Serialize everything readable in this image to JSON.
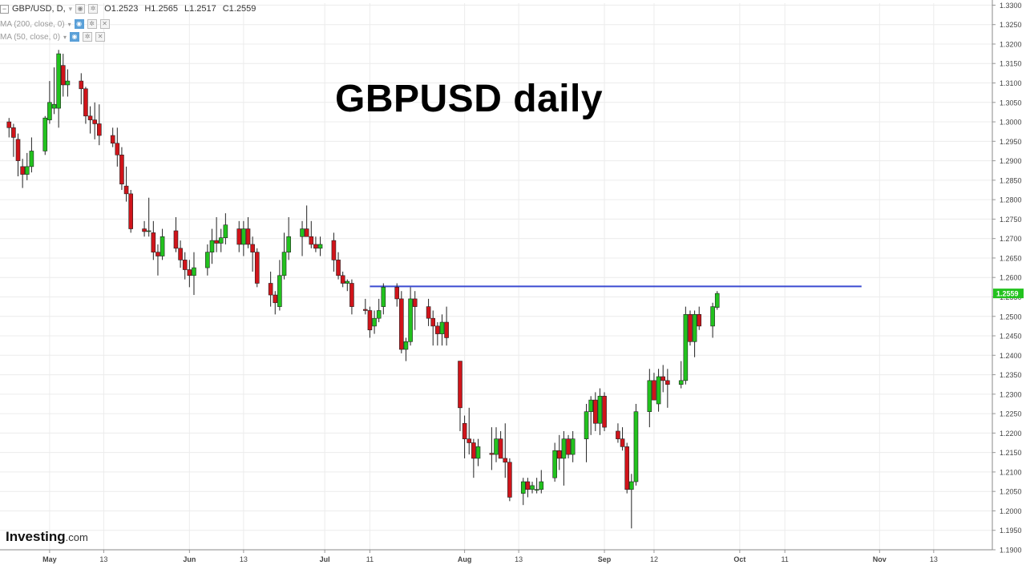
{
  "header": {
    "symbol": "GBP/USD, D,",
    "open": "O1.2523",
    "high": "H1.2565",
    "low": "L1.2517",
    "close": "C1.2559",
    "ma200": "MA (200, close, 0)",
    "ma50": "MA (50, close, 0)"
  },
  "brand": {
    "name": "Investing",
    "suffix": ".com"
  },
  "colors": {
    "up": "#22c21e",
    "down": "#d0141a",
    "resistance": "#3b4bd1",
    "price_tag": "#22c21e"
  },
  "chart_data": {
    "type": "candlestick",
    "title": "GBPUSD daily",
    "ylim": [
      1.19,
      1.3305
    ],
    "y_ticks": [
      "1.3300",
      "1.3250",
      "1.3200",
      "1.3150",
      "1.3100",
      "1.3050",
      "1.3000",
      "1.2950",
      "1.2900",
      "1.2850",
      "1.2800",
      "1.2750",
      "1.2700",
      "1.2650",
      "1.2600",
      "1.2550",
      "1.2500",
      "1.2450",
      "1.2400",
      "1.2350",
      "1.2300",
      "1.2250",
      "1.2200",
      "1.2150",
      "1.2100",
      "1.2050",
      "1.2000",
      "1.1950",
      "1.1900"
    ],
    "x_ticks": [
      {
        "label": "May",
        "day": 0
      },
      {
        "label": "13",
        "day": 12
      },
      {
        "label": "Jun",
        "day": 31
      },
      {
        "label": "13",
        "day": 43
      },
      {
        "label": "Jul",
        "day": 61
      },
      {
        "label": "11",
        "day": 71
      },
      {
        "label": "Aug",
        "day": 92
      },
      {
        "label": "13",
        "day": 104
      },
      {
        "label": "Sep",
        "day": 123
      },
      {
        "label": "12",
        "day": 134
      },
      {
        "label": "Oct",
        "day": 153
      },
      {
        "label": "11",
        "day": 163
      },
      {
        "label": "Nov",
        "day": 184
      },
      {
        "label": "13",
        "day": 196
      }
    ],
    "x_range_days": [
      -11,
      209
    ],
    "last_price": "1.2559",
    "resistance": {
      "level": 1.2577,
      "from_day": 71,
      "to_day": 180
    },
    "candles": [
      {
        "d": -9,
        "o": 1.3,
        "h": 1.301,
        "l": 1.296,
        "c": 1.2985
      },
      {
        "d": -8,
        "o": 1.2985,
        "h": 1.2995,
        "l": 1.291,
        "c": 1.296
      },
      {
        "d": -7,
        "o": 1.2955,
        "h": 1.297,
        "l": 1.286,
        "c": 1.29
      },
      {
        "d": -6,
        "o": 1.2885,
        "h": 1.2905,
        "l": 1.283,
        "c": 1.2865
      },
      {
        "d": -5,
        "o": 1.2865,
        "h": 1.292,
        "l": 1.285,
        "c": 1.2885
      },
      {
        "d": -4,
        "o": 1.2885,
        "h": 1.296,
        "l": 1.287,
        "c": 1.2925
      },
      {
        "d": -1,
        "o": 1.2925,
        "h": 1.3015,
        "l": 1.2915,
        "c": 1.301
      },
      {
        "d": 0,
        "o": 1.3005,
        "h": 1.3105,
        "l": 1.2995,
        "c": 1.305
      },
      {
        "d": 1,
        "o": 1.3035,
        "h": 1.314,
        "l": 1.302,
        "c": 1.3045
      },
      {
        "d": 2,
        "o": 1.3035,
        "h": 1.3185,
        "l": 1.2985,
        "c": 1.3175
      },
      {
        "d": 3,
        "o": 1.3145,
        "h": 1.3175,
        "l": 1.3065,
        "c": 1.3095
      },
      {
        "d": 4,
        "o": 1.3095,
        "h": 1.3135,
        "l": 1.3065,
        "c": 1.3105
      },
      {
        "d": 7,
        "o": 1.3105,
        "h": 1.3125,
        "l": 1.3045,
        "c": 1.3085
      },
      {
        "d": 8,
        "o": 1.3085,
        "h": 1.309,
        "l": 1.2995,
        "c": 1.3015
      },
      {
        "d": 9,
        "o": 1.3015,
        "h": 1.304,
        "l": 1.297,
        "c": 1.3005
      },
      {
        "d": 10,
        "o": 1.3005,
        "h": 1.305,
        "l": 1.2955,
        "c": 1.2995
      },
      {
        "d": 11,
        "o": 1.2995,
        "h": 1.3045,
        "l": 1.294,
        "c": 1.2965
      },
      {
        "d": 14,
        "o": 1.2965,
        "h": 1.2985,
        "l": 1.2935,
        "c": 1.2945
      },
      {
        "d": 15,
        "o": 1.2945,
        "h": 1.2985,
        "l": 1.2885,
        "c": 1.2915
      },
      {
        "d": 16,
        "o": 1.2915,
        "h": 1.2935,
        "l": 1.2825,
        "c": 1.284
      },
      {
        "d": 17,
        "o": 1.2835,
        "h": 1.2885,
        "l": 1.2795,
        "c": 1.2815
      },
      {
        "d": 18,
        "o": 1.2815,
        "h": 1.2825,
        "l": 1.2715,
        "c": 1.2725
      },
      {
        "d": 21,
        "o": 1.2725,
        "h": 1.2745,
        "l": 1.2705,
        "c": 1.2718
      },
      {
        "d": 22,
        "o": 1.2718,
        "h": 1.2805,
        "l": 1.2705,
        "c": 1.272
      },
      {
        "d": 23,
        "o": 1.2715,
        "h": 1.2745,
        "l": 1.2645,
        "c": 1.2665
      },
      {
        "d": 24,
        "o": 1.2665,
        "h": 1.2685,
        "l": 1.2605,
        "c": 1.2655
      },
      {
        "d": 25,
        "o": 1.2655,
        "h": 1.2725,
        "l": 1.2645,
        "c": 1.2705
      },
      {
        "d": 28,
        "o": 1.272,
        "h": 1.2755,
        "l": 1.2665,
        "c": 1.2675
      },
      {
        "d": 29,
        "o": 1.2675,
        "h": 1.2695,
        "l": 1.2625,
        "c": 1.2645
      },
      {
        "d": 30,
        "o": 1.2645,
        "h": 1.2665,
        "l": 1.2595,
        "c": 1.262
      },
      {
        "d": 31,
        "o": 1.262,
        "h": 1.2645,
        "l": 1.2575,
        "c": 1.2605
      },
      {
        "d": 32,
        "o": 1.2605,
        "h": 1.2665,
        "l": 1.2555,
        "c": 1.2625
      },
      {
        "d": 35,
        "o": 1.2625,
        "h": 1.2685,
        "l": 1.2605,
        "c": 1.2665
      },
      {
        "d": 36,
        "o": 1.2665,
        "h": 1.2725,
        "l": 1.2635,
        "c": 1.2695
      },
      {
        "d": 37,
        "o": 1.2695,
        "h": 1.2755,
        "l": 1.2665,
        "c": 1.2688
      },
      {
        "d": 38,
        "o": 1.2688,
        "h": 1.2725,
        "l": 1.2665,
        "c": 1.2702
      },
      {
        "d": 39,
        "o": 1.2702,
        "h": 1.2765,
        "l": 1.2685,
        "c": 1.2735
      },
      {
        "d": 42,
        "o": 1.2725,
        "h": 1.2745,
        "l": 1.2665,
        "c": 1.2685
      },
      {
        "d": 43,
        "o": 1.2685,
        "h": 1.2745,
        "l": 1.2655,
        "c": 1.2725
      },
      {
        "d": 44,
        "o": 1.2725,
        "h": 1.2755,
        "l": 1.2675,
        "c": 1.2685
      },
      {
        "d": 45,
        "o": 1.2685,
        "h": 1.2705,
        "l": 1.2615,
        "c": 1.2665
      },
      {
        "d": 46,
        "o": 1.2665,
        "h": 1.2675,
        "l": 1.2575,
        "c": 1.2585
      },
      {
        "d": 49,
        "o": 1.2585,
        "h": 1.2615,
        "l": 1.2525,
        "c": 1.2555
      },
      {
        "d": 50,
        "o": 1.2555,
        "h": 1.2565,
        "l": 1.2505,
        "c": 1.2535
      },
      {
        "d": 51,
        "o": 1.2525,
        "h": 1.2645,
        "l": 1.2515,
        "c": 1.2605
      },
      {
        "d": 52,
        "o": 1.2605,
        "h": 1.2715,
        "l": 1.2595,
        "c": 1.2665
      },
      {
        "d": 53,
        "o": 1.2665,
        "h": 1.2755,
        "l": 1.2645,
        "c": 1.2705
      },
      {
        "d": 56,
        "o": 1.2705,
        "h": 1.2745,
        "l": 1.2655,
        "c": 1.2725
      },
      {
        "d": 57,
        "o": 1.2725,
        "h": 1.2785,
        "l": 1.2705,
        "c": 1.2705
      },
      {
        "d": 58,
        "o": 1.2705,
        "h": 1.2745,
        "l": 1.2675,
        "c": 1.2685
      },
      {
        "d": 59,
        "o": 1.2685,
        "h": 1.2705,
        "l": 1.2665,
        "c": 1.2675
      },
      {
        "d": 60,
        "o": 1.2675,
        "h": 1.2705,
        "l": 1.2655,
        "c": 1.2685
      },
      {
        "d": 63,
        "o": 1.2695,
        "h": 1.2715,
        "l": 1.2615,
        "c": 1.2645
      },
      {
        "d": 64,
        "o": 1.2645,
        "h": 1.2665,
        "l": 1.2595,
        "c": 1.2605
      },
      {
        "d": 65,
        "o": 1.2605,
        "h": 1.2615,
        "l": 1.2575,
        "c": 1.2585
      },
      {
        "d": 66,
        "o": 1.2585,
        "h": 1.2595,
        "l": 1.2565,
        "c": 1.259
      },
      {
        "d": 67,
        "o": 1.2585,
        "h": 1.2595,
        "l": 1.2505,
        "c": 1.2525
      },
      {
        "d": 70,
        "o": 1.2518,
        "h": 1.2545,
        "l": 1.2505,
        "c": 1.2515
      },
      {
        "d": 71,
        "o": 1.2515,
        "h": 1.2525,
        "l": 1.2445,
        "c": 1.2465
      },
      {
        "d": 72,
        "o": 1.2475,
        "h": 1.2515,
        "l": 1.2455,
        "c": 1.2495
      },
      {
        "d": 73,
        "o": 1.2495,
        "h": 1.2545,
        "l": 1.2485,
        "c": 1.2515
      },
      {
        "d": 74,
        "o": 1.2525,
        "h": 1.2585,
        "l": 1.2505,
        "c": 1.2575
      },
      {
        "d": 77,
        "o": 1.2575,
        "h": 1.2585,
        "l": 1.2525,
        "c": 1.2545
      },
      {
        "d": 78,
        "o": 1.2545,
        "h": 1.2565,
        "l": 1.2405,
        "c": 1.2415
      },
      {
        "d": 79,
        "o": 1.2415,
        "h": 1.2445,
        "l": 1.2385,
        "c": 1.2435
      },
      {
        "d": 80,
        "o": 1.2435,
        "h": 1.2575,
        "l": 1.2425,
        "c": 1.2545
      },
      {
        "d": 81,
        "o": 1.2545,
        "h": 1.2565,
        "l": 1.2465,
        "c": 1.2525
      },
      {
        "d": 84,
        "o": 1.2525,
        "h": 1.2545,
        "l": 1.2475,
        "c": 1.2495
      },
      {
        "d": 85,
        "o": 1.2495,
        "h": 1.2515,
        "l": 1.2425,
        "c": 1.2475
      },
      {
        "d": 86,
        "o": 1.2475,
        "h": 1.2485,
        "l": 1.2425,
        "c": 1.2455
      },
      {
        "d": 87,
        "o": 1.2455,
        "h": 1.2505,
        "l": 1.2425,
        "c": 1.2485
      },
      {
        "d": 88,
        "o": 1.2485,
        "h": 1.2525,
        "l": 1.2425,
        "c": 1.2445
      },
      {
        "d": 91,
        "o": 1.2385,
        "h": 1.2385,
        "l": 1.2205,
        "c": 1.2265
      },
      {
        "d": 92,
        "o": 1.2225,
        "h": 1.2245,
        "l": 1.2135,
        "c": 1.2185
      },
      {
        "d": 93,
        "o": 1.2185,
        "h": 1.2265,
        "l": 1.2145,
        "c": 1.2175
      },
      {
        "d": 94,
        "o": 1.2175,
        "h": 1.2185,
        "l": 1.2085,
        "c": 1.2135
      },
      {
        "d": 95,
        "o": 1.2135,
        "h": 1.2185,
        "l": 1.2115,
        "c": 1.2165
      },
      {
        "d": 98,
        "o": 1.2148,
        "h": 1.2215,
        "l": 1.2105,
        "c": 1.2145
      },
      {
        "d": 99,
        "o": 1.2145,
        "h": 1.2215,
        "l": 1.2125,
        "c": 1.2185
      },
      {
        "d": 100,
        "o": 1.2185,
        "h": 1.2205,
        "l": 1.2135,
        "c": 1.2135
      },
      {
        "d": 101,
        "o": 1.2135,
        "h": 1.2225,
        "l": 1.2085,
        "c": 1.2125
      },
      {
        "d": 102,
        "o": 1.2125,
        "h": 1.2135,
        "l": 1.2025,
        "c": 1.2035
      },
      {
        "d": 105,
        "o": 1.2045,
        "h": 1.2085,
        "l": 1.2015,
        "c": 1.2075
      },
      {
        "d": 106,
        "o": 1.2075,
        "h": 1.2085,
        "l": 1.2035,
        "c": 1.2055
      },
      {
        "d": 107,
        "o": 1.2055,
        "h": 1.2075,
        "l": 1.2045,
        "c": 1.2065
      },
      {
        "d": 108,
        "o": 1.2055,
        "h": 1.2085,
        "l": 1.2045,
        "c": 1.2055
      },
      {
        "d": 109,
        "o": 1.2055,
        "h": 1.2105,
        "l": 1.2045,
        "c": 1.2075
      },
      {
        "d": 112,
        "o": 1.2085,
        "h": 1.2175,
        "l": 1.2075,
        "c": 1.2155
      },
      {
        "d": 113,
        "o": 1.2155,
        "h": 1.2195,
        "l": 1.2105,
        "c": 1.2135
      },
      {
        "d": 114,
        "o": 1.2135,
        "h": 1.2205,
        "l": 1.2065,
        "c": 1.2185
      },
      {
        "d": 115,
        "o": 1.2185,
        "h": 1.2195,
        "l": 1.2135,
        "c": 1.2145
      },
      {
        "d": 116,
        "o": 1.2145,
        "h": 1.2205,
        "l": 1.2125,
        "c": 1.2185
      },
      {
        "d": 119,
        "o": 1.2185,
        "h": 1.2275,
        "l": 1.2125,
        "c": 1.2255
      },
      {
        "d": 120,
        "o": 1.2255,
        "h": 1.2295,
        "l": 1.2195,
        "c": 1.2285
      },
      {
        "d": 121,
        "o": 1.2285,
        "h": 1.2305,
        "l": 1.2205,
        "c": 1.2225
      },
      {
        "d": 122,
        "o": 1.2225,
        "h": 1.2315,
        "l": 1.2195,
        "c": 1.2295
      },
      {
        "d": 123,
        "o": 1.2295,
        "h": 1.2305,
        "l": 1.2205,
        "c": 1.2215
      },
      {
        "d": 126,
        "o": 1.2205,
        "h": 1.2225,
        "l": 1.2175,
        "c": 1.2185
      },
      {
        "d": 127,
        "o": 1.2185,
        "h": 1.2215,
        "l": 1.2155,
        "c": 1.2165
      },
      {
        "d": 128,
        "o": 1.2165,
        "h": 1.2175,
        "l": 1.2045,
        "c": 1.2055
      },
      {
        "d": 129,
        "o": 1.2055,
        "h": 1.2095,
        "l": 1.1955,
        "c": 1.2075
      },
      {
        "d": 130,
        "o": 1.2075,
        "h": 1.2275,
        "l": 1.2065,
        "c": 1.2255
      },
      {
        "d": 133,
        "o": 1.2255,
        "h": 1.2365,
        "l": 1.2215,
        "c": 1.2335
      },
      {
        "d": 134,
        "o": 1.2335,
        "h": 1.2355,
        "l": 1.2285,
        "c": 1.2285
      },
      {
        "d": 135,
        "o": 1.2275,
        "h": 1.2365,
        "l": 1.2255,
        "c": 1.2345
      },
      {
        "d": 136,
        "o": 1.2345,
        "h": 1.2375,
        "l": 1.2305,
        "c": 1.2335
      },
      {
        "d": 137,
        "o": 1.2335,
        "h": 1.2365,
        "l": 1.2265,
        "c": 1.2325
      },
      {
        "d": 140,
        "o": 1.2325,
        "h": 1.2385,
        "l": 1.2315,
        "c": 1.2335
      },
      {
        "d": 141,
        "o": 1.2335,
        "h": 1.2525,
        "l": 1.2325,
        "c": 1.2505
      },
      {
        "d": 142,
        "o": 1.2505,
        "h": 1.2515,
        "l": 1.2425,
        "c": 1.2435
      },
      {
        "d": 143,
        "o": 1.2435,
        "h": 1.2515,
        "l": 1.2395,
        "c": 1.2505
      },
      {
        "d": 144,
        "o": 1.2505,
        "h": 1.2525,
        "l": 1.2465,
        "c": 1.2475
      },
      {
        "d": 147,
        "o": 1.2475,
        "h": 1.2535,
        "l": 1.2445,
        "c": 1.2525
      },
      {
        "d": 148,
        "o": 1.2523,
        "h": 1.2565,
        "l": 1.2517,
        "c": 1.2559
      }
    ]
  }
}
